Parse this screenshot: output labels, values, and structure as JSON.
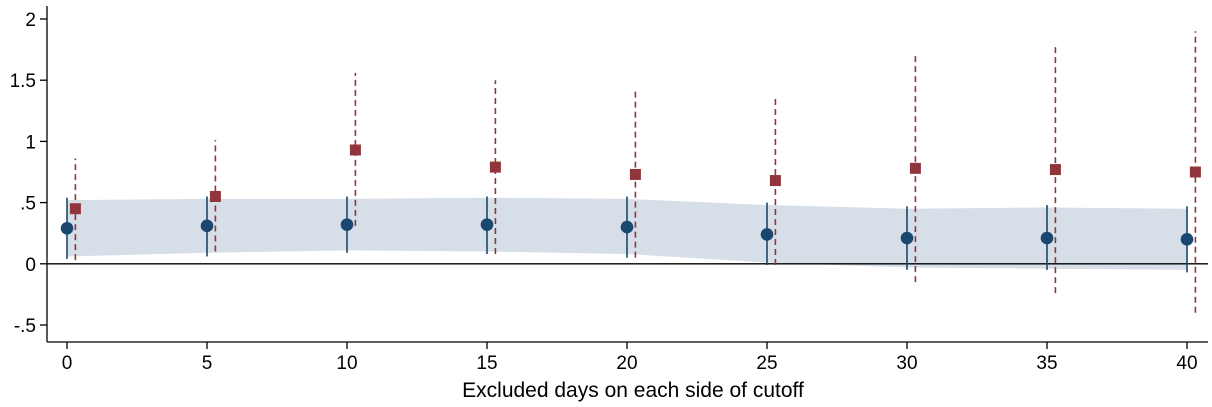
{
  "chart_data": {
    "type": "scatter",
    "title": "",
    "xlabel": "Excluded days on each side of cutoff",
    "ylabel": "",
    "xlim": [
      0,
      40
    ],
    "ylim": [
      -0.5,
      2
    ],
    "x_ticks": [
      0,
      5,
      10,
      15,
      20,
      25,
      30,
      35,
      40
    ],
    "x_tick_labels": [
      "0",
      "5",
      "10",
      "15",
      "20",
      "25",
      "30",
      "35",
      "40"
    ],
    "y_ticks": [
      -0.5,
      0,
      0.5,
      1,
      1.5,
      2
    ],
    "y_tick_labels": [
      "-.5",
      "0",
      ".5",
      "1",
      "1.5",
      "2"
    ],
    "zero_line": true,
    "grid": false,
    "legend": "none",
    "x": [
      0,
      5,
      10,
      15,
      20,
      25,
      30,
      35,
      40
    ],
    "band": {
      "lower": [
        0.06,
        0.09,
        0.11,
        0.1,
        0.08,
        0.01,
        -0.03,
        -0.04,
        -0.05
      ],
      "upper": [
        0.52,
        0.53,
        0.53,
        0.54,
        0.53,
        0.48,
        0.45,
        0.46,
        0.45
      ],
      "color": "#d6dee7"
    },
    "series": [
      {
        "marker": "circle",
        "line_style": "solid",
        "color": "#1a476f",
        "x_offset": 0,
        "values": [
          0.29,
          0.31,
          0.32,
          0.32,
          0.3,
          0.24,
          0.21,
          0.21,
          0.2
        ],
        "ci_low": [
          0.04,
          0.06,
          0.09,
          0.08,
          0.05,
          -0.01,
          -0.05,
          -0.05,
          -0.07
        ],
        "ci_high": [
          0.54,
          0.55,
          0.55,
          0.55,
          0.55,
          0.5,
          0.47,
          0.48,
          0.47
        ]
      },
      {
        "marker": "square",
        "line_style": "dashed",
        "color": "#90353b",
        "x_offset": 0.3,
        "values": [
          0.45,
          0.55,
          0.93,
          0.79,
          0.73,
          0.68,
          0.78,
          0.77,
          0.75
        ],
        "ci_low": [
          0.03,
          0.1,
          0.31,
          0.08,
          0.05,
          -0.01,
          -0.15,
          -0.24,
          -0.4
        ],
        "ci_high": [
          0.86,
          1.01,
          1.56,
          1.5,
          1.41,
          1.37,
          1.72,
          1.77,
          1.9
        ]
      }
    ]
  }
}
